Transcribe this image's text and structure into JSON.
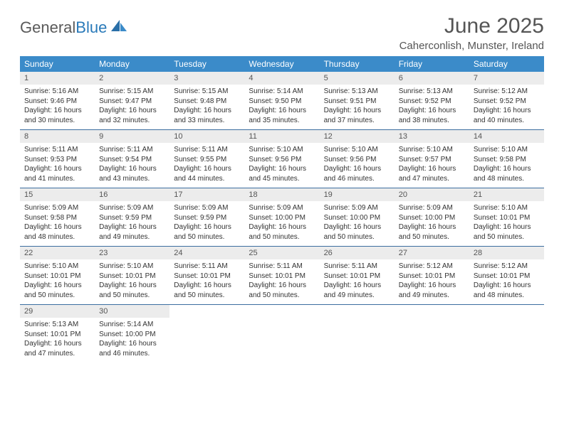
{
  "colors": {
    "header_bg": "#3b8bc9",
    "header_text": "#ffffff",
    "daynum_bg": "#ececec",
    "daynum_text": "#555555",
    "body_text": "#333333",
    "rule": "#3b6ea0",
    "title_text": "#555555",
    "logo_gray": "#5a5a5a",
    "logo_blue": "#2a7ab9",
    "page_bg": "#ffffff"
  },
  "fonts": {
    "title_size_pt": 22,
    "location_size_pt": 11,
    "day_header_size_pt": 9,
    "daynum_size_pt": 8,
    "body_size_pt": 7.5,
    "family": "Arial"
  },
  "logo": {
    "text_gray": "General",
    "text_blue": "Blue"
  },
  "title": "June 2025",
  "location": "Caherconlish, Munster, Ireland",
  "day_headers": [
    "Sunday",
    "Monday",
    "Tuesday",
    "Wednesday",
    "Thursday",
    "Friday",
    "Saturday"
  ],
  "weeks": [
    [
      {
        "n": "1",
        "sunrise": "Sunrise: 5:16 AM",
        "sunset": "Sunset: 9:46 PM",
        "d1": "Daylight: 16 hours",
        "d2": "and 30 minutes."
      },
      {
        "n": "2",
        "sunrise": "Sunrise: 5:15 AM",
        "sunset": "Sunset: 9:47 PM",
        "d1": "Daylight: 16 hours",
        "d2": "and 32 minutes."
      },
      {
        "n": "3",
        "sunrise": "Sunrise: 5:15 AM",
        "sunset": "Sunset: 9:48 PM",
        "d1": "Daylight: 16 hours",
        "d2": "and 33 minutes."
      },
      {
        "n": "4",
        "sunrise": "Sunrise: 5:14 AM",
        "sunset": "Sunset: 9:50 PM",
        "d1": "Daylight: 16 hours",
        "d2": "and 35 minutes."
      },
      {
        "n": "5",
        "sunrise": "Sunrise: 5:13 AM",
        "sunset": "Sunset: 9:51 PM",
        "d1": "Daylight: 16 hours",
        "d2": "and 37 minutes."
      },
      {
        "n": "6",
        "sunrise": "Sunrise: 5:13 AM",
        "sunset": "Sunset: 9:52 PM",
        "d1": "Daylight: 16 hours",
        "d2": "and 38 minutes."
      },
      {
        "n": "7",
        "sunrise": "Sunrise: 5:12 AM",
        "sunset": "Sunset: 9:52 PM",
        "d1": "Daylight: 16 hours",
        "d2": "and 40 minutes."
      }
    ],
    [
      {
        "n": "8",
        "sunrise": "Sunrise: 5:11 AM",
        "sunset": "Sunset: 9:53 PM",
        "d1": "Daylight: 16 hours",
        "d2": "and 41 minutes."
      },
      {
        "n": "9",
        "sunrise": "Sunrise: 5:11 AM",
        "sunset": "Sunset: 9:54 PM",
        "d1": "Daylight: 16 hours",
        "d2": "and 43 minutes."
      },
      {
        "n": "10",
        "sunrise": "Sunrise: 5:11 AM",
        "sunset": "Sunset: 9:55 PM",
        "d1": "Daylight: 16 hours",
        "d2": "and 44 minutes."
      },
      {
        "n": "11",
        "sunrise": "Sunrise: 5:10 AM",
        "sunset": "Sunset: 9:56 PM",
        "d1": "Daylight: 16 hours",
        "d2": "and 45 minutes."
      },
      {
        "n": "12",
        "sunrise": "Sunrise: 5:10 AM",
        "sunset": "Sunset: 9:56 PM",
        "d1": "Daylight: 16 hours",
        "d2": "and 46 minutes."
      },
      {
        "n": "13",
        "sunrise": "Sunrise: 5:10 AM",
        "sunset": "Sunset: 9:57 PM",
        "d1": "Daylight: 16 hours",
        "d2": "and 47 minutes."
      },
      {
        "n": "14",
        "sunrise": "Sunrise: 5:10 AM",
        "sunset": "Sunset: 9:58 PM",
        "d1": "Daylight: 16 hours",
        "d2": "and 48 minutes."
      }
    ],
    [
      {
        "n": "15",
        "sunrise": "Sunrise: 5:09 AM",
        "sunset": "Sunset: 9:58 PM",
        "d1": "Daylight: 16 hours",
        "d2": "and 48 minutes."
      },
      {
        "n": "16",
        "sunrise": "Sunrise: 5:09 AM",
        "sunset": "Sunset: 9:59 PM",
        "d1": "Daylight: 16 hours",
        "d2": "and 49 minutes."
      },
      {
        "n": "17",
        "sunrise": "Sunrise: 5:09 AM",
        "sunset": "Sunset: 9:59 PM",
        "d1": "Daylight: 16 hours",
        "d2": "and 50 minutes."
      },
      {
        "n": "18",
        "sunrise": "Sunrise: 5:09 AM",
        "sunset": "Sunset: 10:00 PM",
        "d1": "Daylight: 16 hours",
        "d2": "and 50 minutes."
      },
      {
        "n": "19",
        "sunrise": "Sunrise: 5:09 AM",
        "sunset": "Sunset: 10:00 PM",
        "d1": "Daylight: 16 hours",
        "d2": "and 50 minutes."
      },
      {
        "n": "20",
        "sunrise": "Sunrise: 5:09 AM",
        "sunset": "Sunset: 10:00 PM",
        "d1": "Daylight: 16 hours",
        "d2": "and 50 minutes."
      },
      {
        "n": "21",
        "sunrise": "Sunrise: 5:10 AM",
        "sunset": "Sunset: 10:01 PM",
        "d1": "Daylight: 16 hours",
        "d2": "and 50 minutes."
      }
    ],
    [
      {
        "n": "22",
        "sunrise": "Sunrise: 5:10 AM",
        "sunset": "Sunset: 10:01 PM",
        "d1": "Daylight: 16 hours",
        "d2": "and 50 minutes."
      },
      {
        "n": "23",
        "sunrise": "Sunrise: 5:10 AM",
        "sunset": "Sunset: 10:01 PM",
        "d1": "Daylight: 16 hours",
        "d2": "and 50 minutes."
      },
      {
        "n": "24",
        "sunrise": "Sunrise: 5:11 AM",
        "sunset": "Sunset: 10:01 PM",
        "d1": "Daylight: 16 hours",
        "d2": "and 50 minutes."
      },
      {
        "n": "25",
        "sunrise": "Sunrise: 5:11 AM",
        "sunset": "Sunset: 10:01 PM",
        "d1": "Daylight: 16 hours",
        "d2": "and 50 minutes."
      },
      {
        "n": "26",
        "sunrise": "Sunrise: 5:11 AM",
        "sunset": "Sunset: 10:01 PM",
        "d1": "Daylight: 16 hours",
        "d2": "and 49 minutes."
      },
      {
        "n": "27",
        "sunrise": "Sunrise: 5:12 AM",
        "sunset": "Sunset: 10:01 PM",
        "d1": "Daylight: 16 hours",
        "d2": "and 49 minutes."
      },
      {
        "n": "28",
        "sunrise": "Sunrise: 5:12 AM",
        "sunset": "Sunset: 10:01 PM",
        "d1": "Daylight: 16 hours",
        "d2": "and 48 minutes."
      }
    ],
    [
      {
        "n": "29",
        "sunrise": "Sunrise: 5:13 AM",
        "sunset": "Sunset: 10:01 PM",
        "d1": "Daylight: 16 hours",
        "d2": "and 47 minutes."
      },
      {
        "n": "30",
        "sunrise": "Sunrise: 5:14 AM",
        "sunset": "Sunset: 10:00 PM",
        "d1": "Daylight: 16 hours",
        "d2": "and 46 minutes."
      },
      null,
      null,
      null,
      null,
      null
    ]
  ]
}
